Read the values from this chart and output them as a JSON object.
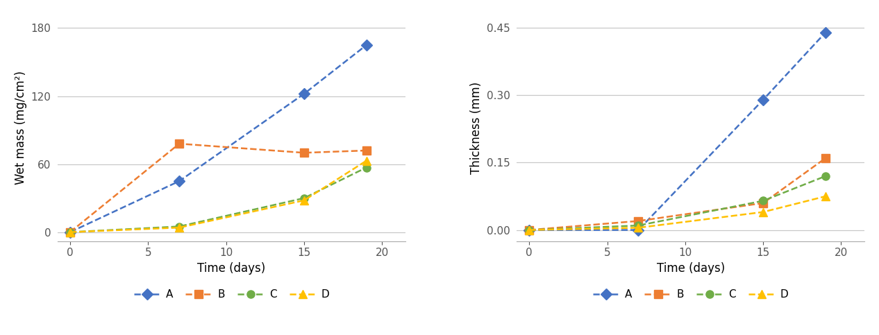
{
  "time": [
    0,
    7,
    15,
    19
  ],
  "wet_mass": {
    "A": [
      0,
      45,
      122,
      165
    ],
    "B": [
      0,
      78,
      70,
      72
    ],
    "C": [
      0,
      5,
      30,
      57
    ],
    "D": [
      0,
      4,
      28,
      63
    ]
  },
  "thickness": {
    "A": [
      0,
      0,
      0.29,
      0.44
    ],
    "B": [
      0,
      0.02,
      0.06,
      0.16
    ],
    "C": [
      0,
      0.01,
      0.065,
      0.12
    ],
    "D": [
      0,
      0.005,
      0.04,
      0.075
    ]
  },
  "colors": {
    "A": "#4472C4",
    "B": "#ED7D31",
    "C": "#70AD47",
    "D": "#FFC000"
  },
  "markers": {
    "A": "D",
    "B": "s",
    "C": "o",
    "D": "^"
  },
  "ylabel_left": "Wet mass (mg/cm²)",
  "ylabel_right": "Thickness (mm)",
  "xlabel": "Time (days)",
  "yticks_left": [
    0,
    60,
    120,
    180
  ],
  "yticks_right": [
    0.0,
    0.15,
    0.3,
    0.45
  ],
  "xticks": [
    0,
    5,
    10,
    15,
    20
  ],
  "ylim_left": [
    -8,
    192
  ],
  "ylim_right": [
    -0.025,
    0.48
  ],
  "xlim": [
    -0.8,
    21.5
  ]
}
